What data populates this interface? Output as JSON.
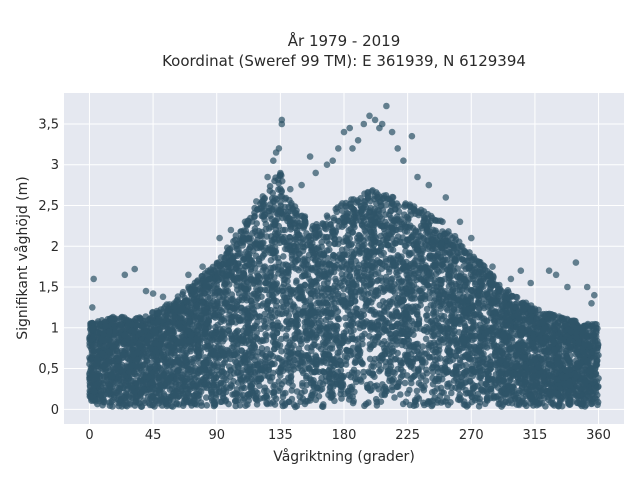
{
  "chart_data": {
    "type": "scatter",
    "title": "År 1979 - 2019",
    "subtitle": "Koordinat (Sweref 99 TM): E 361939, N 6129394",
    "xlabel": "Vågriktning (grader)",
    "ylabel": "Signifikant våghöjd (m)",
    "xlim": [
      -18,
      378
    ],
    "ylim": [
      -0.18,
      3.88
    ],
    "xticks": [
      0,
      45,
      90,
      135,
      180,
      225,
      270,
      315,
      360
    ],
    "xtick_labels": [
      "0",
      "45",
      "90",
      "135",
      "180",
      "225",
      "270",
      "315",
      "360"
    ],
    "yticks": [
      0,
      0.5,
      1,
      1.5,
      2,
      2.5,
      3,
      3.5
    ],
    "ytick_labels": [
      "0",
      "0,5",
      "1",
      "1,5",
      "2",
      "2,5",
      "3",
      "3,5"
    ],
    "grid": true,
    "legend": "none",
    "colors": {
      "marker": "#2f5468",
      "plot_bg": "#e5e8f0",
      "grid": "#ffffff"
    },
    "upper_envelope": {
      "x": [
        0,
        10,
        20,
        30,
        40,
        50,
        60,
        70,
        80,
        90,
        100,
        110,
        120,
        128,
        135,
        142,
        150,
        160,
        170,
        180,
        190,
        200,
        210,
        220,
        225,
        230,
        240,
        250,
        260,
        270,
        280,
        290,
        300,
        310,
        320,
        330,
        340,
        350,
        360
      ],
      "y": [
        1.05,
        1.1,
        1.15,
        1.1,
        1.15,
        1.25,
        1.35,
        1.5,
        1.65,
        1.8,
        2.05,
        2.3,
        2.55,
        2.75,
        2.95,
        2.55,
        2.4,
        2.3,
        2.4,
        2.55,
        2.6,
        2.7,
        2.65,
        2.55,
        2.6,
        2.5,
        2.4,
        2.3,
        2.1,
        1.9,
        1.75,
        1.55,
        1.4,
        1.3,
        1.2,
        1.15,
        1.1,
        1.05,
        1.05
      ]
    },
    "outliers": [
      {
        "x": 3,
        "y": 1.6
      },
      {
        "x": 2,
        "y": 1.25
      },
      {
        "x": 25,
        "y": 1.65
      },
      {
        "x": 32,
        "y": 1.72
      },
      {
        "x": 40,
        "y": 1.45
      },
      {
        "x": 45,
        "y": 1.42
      },
      {
        "x": 52,
        "y": 1.38
      },
      {
        "x": 70,
        "y": 1.65
      },
      {
        "x": 80,
        "y": 1.75
      },
      {
        "x": 92,
        "y": 2.1
      },
      {
        "x": 100,
        "y": 2.2
      },
      {
        "x": 110,
        "y": 2.3
      },
      {
        "x": 118,
        "y": 2.55
      },
      {
        "x": 126,
        "y": 2.85
      },
      {
        "x": 130,
        "y": 3.05
      },
      {
        "x": 132,
        "y": 3.15
      },
      {
        "x": 134,
        "y": 3.2
      },
      {
        "x": 136,
        "y": 3.5
      },
      {
        "x": 136,
        "y": 3.55
      },
      {
        "x": 142,
        "y": 2.7
      },
      {
        "x": 150,
        "y": 2.75
      },
      {
        "x": 156,
        "y": 3.1
      },
      {
        "x": 160,
        "y": 2.9
      },
      {
        "x": 168,
        "y": 3.0
      },
      {
        "x": 172,
        "y": 3.05
      },
      {
        "x": 176,
        "y": 3.2
      },
      {
        "x": 180,
        "y": 3.4
      },
      {
        "x": 184,
        "y": 3.45
      },
      {
        "x": 186,
        "y": 3.2
      },
      {
        "x": 190,
        "y": 3.3
      },
      {
        "x": 194,
        "y": 3.5
      },
      {
        "x": 198,
        "y": 3.6
      },
      {
        "x": 202,
        "y": 3.55
      },
      {
        "x": 205,
        "y": 3.45
      },
      {
        "x": 207,
        "y": 3.5
      },
      {
        "x": 210,
        "y": 3.72
      },
      {
        "x": 214,
        "y": 3.4
      },
      {
        "x": 218,
        "y": 3.2
      },
      {
        "x": 222,
        "y": 3.05
      },
      {
        "x": 228,
        "y": 3.35
      },
      {
        "x": 232,
        "y": 2.85
      },
      {
        "x": 240,
        "y": 2.75
      },
      {
        "x": 252,
        "y": 2.6
      },
      {
        "x": 262,
        "y": 2.3
      },
      {
        "x": 270,
        "y": 2.1
      },
      {
        "x": 285,
        "y": 1.75
      },
      {
        "x": 298,
        "y": 1.6
      },
      {
        "x": 305,
        "y": 1.7
      },
      {
        "x": 312,
        "y": 1.55
      },
      {
        "x": 325,
        "y": 1.7
      },
      {
        "x": 330,
        "y": 1.65
      },
      {
        "x": 338,
        "y": 1.5
      },
      {
        "x": 344,
        "y": 1.8
      },
      {
        "x": 352,
        "y": 1.5
      },
      {
        "x": 357,
        "y": 1.4
      },
      {
        "x": 355,
        "y": 1.3
      }
    ],
    "point_count": 7000,
    "point_seed": 1979
  }
}
